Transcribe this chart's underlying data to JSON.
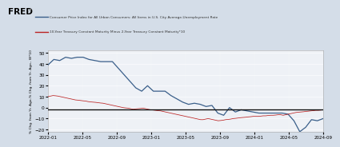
{
  "legend_line1": "Consumer Price Index for All Urban Consumers: All Items in U.S. City Average-Unemployment Rate",
  "legend_line2": "10-Year Treasury Constant Maturity Minus 2-Year Treasury Constant Maturity*10",
  "ylabel": "% Chg. from Yr. Ago-% Chg. from Yr. Ago., W*10",
  "ylim": [
    -22,
    52
  ],
  "yticks": [
    -20,
    -10,
    0,
    10,
    20,
    30,
    40,
    50
  ],
  "header_bg": "#d4dde8",
  "plot_bg": "#eef1f6",
  "line1_color": "#3a5f8a",
  "line2_color": "#bb2222",
  "hline_color": "#111111",
  "xtick_labels": [
    "2022-01",
    "2022-05",
    "2022-09",
    "2023-01",
    "2023-05",
    "2023-09",
    "2024-01",
    "2024-05",
    "2024-09"
  ],
  "blue_data": [
    39,
    44,
    43,
    46,
    45,
    46,
    46,
    44,
    43,
    42,
    42,
    42,
    36,
    30,
    24,
    18,
    15,
    20,
    15,
    15,
    15,
    11,
    8,
    5,
    3,
    4,
    3,
    1,
    2,
    -5,
    -7,
    0,
    -4,
    -2,
    -3,
    -4,
    -5,
    -5,
    -5,
    -5,
    -5,
    -6,
    -12,
    -22,
    -18,
    -11,
    -12,
    -10
  ],
  "red_data_dense": [
    10,
    10.5,
    11,
    10.8,
    10.5,
    10,
    9.5,
    9,
    8.5,
    8,
    7.5,
    7,
    6.8,
    6.5,
    6.2,
    6,
    5.5,
    5.2,
    5,
    4.8,
    4.5,
    4.2,
    4,
    3.5,
    3,
    2.5,
    2,
    1.5,
    1,
    0.5,
    0,
    -0.3,
    -0.5,
    -1,
    -1.5,
    -1.2,
    -1,
    -0.8,
    -0.5,
    -1,
    -1.5,
    -2,
    -2.2,
    -2.5,
    -2.8,
    -3,
    -3.5,
    -4,
    -4.5,
    -5,
    -5.5,
    -6,
    -6.5,
    -7,
    -7.5,
    -8,
    -8.5,
    -9,
    -9.5,
    -10,
    -10.5,
    -11,
    -11,
    -10.5,
    -10,
    -10.5,
    -11,
    -11.5,
    -12,
    -11.8,
    -11.5,
    -11,
    -10.8,
    -10.5,
    -10,
    -9.8,
    -9.5,
    -9.2,
    -9,
    -8.8,
    -8.5,
    -8.3,
    -8,
    -8,
    -8,
    -7.8,
    -7.5,
    -7.5,
    -7.2,
    -7,
    -7,
    -6.8,
    -6.5,
    -6.5,
    -7,
    -6.5,
    -6,
    -5.5,
    -5,
    -4.5,
    -4.2,
    -4,
    -3.8,
    -3.5,
    -3.3,
    -3,
    -2.8,
    -2.5,
    -2.5,
    -2.3,
    -2
  ]
}
